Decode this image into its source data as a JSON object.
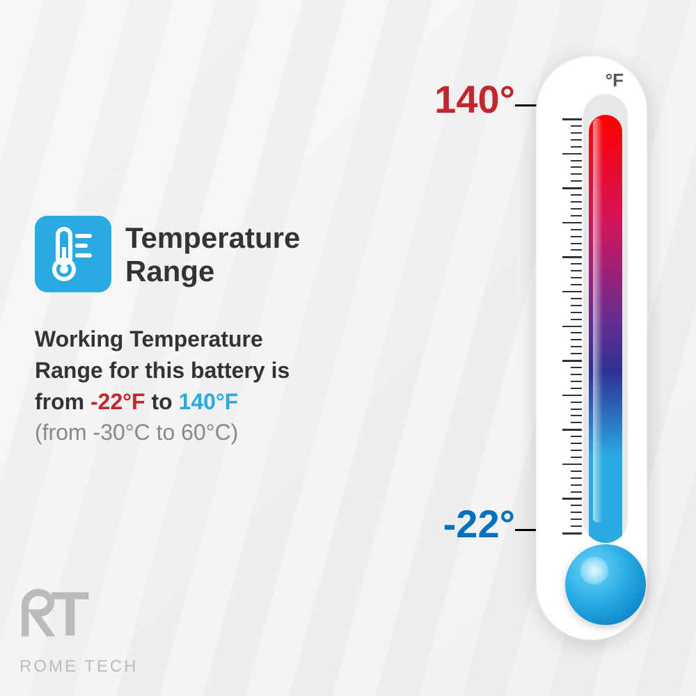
{
  "title": "Temperature Range",
  "description": {
    "line1": "Working Temperature",
    "line2": "Range for this battery is",
    "line3_prefix": "from ",
    "low_f": "-22°F",
    "line3_mid": " to ",
    "high_f": "140°F",
    "celsius": "(from -30°C to 60°C)"
  },
  "thermometer": {
    "unit": "°F",
    "high_label": "140°",
    "low_label": "-22°",
    "body_color": "#ffffff",
    "tube_bg": "#e8e8e8",
    "gradient_stops": [
      "#ff0000",
      "#d4145a",
      "#662d91",
      "#2e3192",
      "#29abe2"
    ],
    "bulb_color": "#29abe2",
    "tick_count_major": 13,
    "tick_minor_per_major": 4,
    "high_color": "#c1272d",
    "low_color": "#0071bc"
  },
  "icon": {
    "bg_color": "#29abe2",
    "name": "thermometer-icon"
  },
  "logo": {
    "mark": "RT",
    "text": "ROME TECH",
    "color": "#bbbbbb"
  },
  "colors": {
    "title": "#333333",
    "body_text": "#333333",
    "muted": "#888888"
  }
}
